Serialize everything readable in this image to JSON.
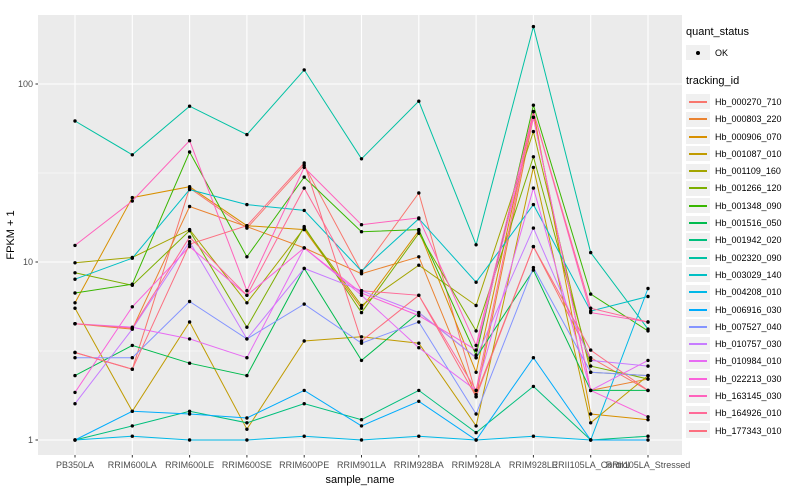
{
  "chart_data": {
    "type": "line",
    "scale_y": "log10",
    "xlabel": "sample_name",
    "ylabel": "FPKM + 1",
    "y_ticks": [
      1,
      10,
      100
    ],
    "ylim": [
      0.82,
      250
    ],
    "grid": "on",
    "legend_position": "right",
    "categories": [
      "PB350LA",
      "RRIM600LA",
      "RRIM600LE",
      "RRIM600SE",
      "RRIM600PE",
      "RRIM901LA",
      "RRIM928BA",
      "RRIM928LA",
      "RRIM928LE",
      "RRII105LA_Control",
      "RRII105LA_Stressed"
    ],
    "series": [
      {
        "name": "Hb_000270_710",
        "color": "#F8766D",
        "values": [
          3.1,
          2.5,
          26,
          15.5,
          35,
          8.8,
          24.4,
          1.8,
          12.2,
          2.9,
          1.9
        ]
      },
      {
        "name": "Hb_000803_220",
        "color": "#EA8331",
        "values": [
          4.5,
          4.2,
          20.5,
          15.8,
          12,
          8.6,
          10.7,
          1.75,
          65,
          1.9,
          2.2
        ]
      },
      {
        "name": "Hb_000906_070",
        "color": "#D89000",
        "values": [
          5.9,
          23,
          26.5,
          16,
          15.2,
          5.5,
          15,
          2.4,
          70,
          1.4,
          1.3
        ]
      },
      {
        "name": "Hb_001087_010",
        "color": "#C09B00",
        "values": [
          5.5,
          1.45,
          4.6,
          1.15,
          3.6,
          3.8,
          3.5,
          1.2,
          34,
          1.25,
          2.3
        ]
      },
      {
        "name": "Hb_001109_160",
        "color": "#A3A500",
        "values": [
          9.9,
          10.6,
          15.2,
          5.9,
          15.5,
          5.7,
          9.6,
          5.7,
          54,
          2.4,
          2.3
        ]
      },
      {
        "name": "Hb_001266_120",
        "color": "#7CAE00",
        "values": [
          8.7,
          7.4,
          15,
          4.3,
          15.8,
          5.2,
          14.5,
          4.1,
          39,
          2.6,
          2.2
        ]
      },
      {
        "name": "Hb_001348_090",
        "color": "#39B600",
        "values": [
          6.7,
          7.5,
          41.5,
          10.7,
          30,
          14.8,
          15.2,
          3.0,
          76,
          6.6,
          4.1
        ]
      },
      {
        "name": "Hb_001516_050",
        "color": "#00BB4E",
        "values": [
          2.3,
          3.4,
          2.7,
          2.3,
          9.2,
          2.8,
          5.2,
          2.9,
          9.0,
          1.9,
          1.9
        ]
      },
      {
        "name": "Hb_001942_020",
        "color": "#00BF7D",
        "values": [
          1.0,
          1.2,
          1.45,
          1.25,
          1.6,
          1.3,
          1.9,
          1.1,
          2.0,
          1.0,
          1.05
        ]
      },
      {
        "name": "Hb_002320_090",
        "color": "#00C1A3",
        "values": [
          62,
          40,
          75,
          52,
          120,
          38,
          80,
          12.5,
          210,
          11.3,
          4.2
        ]
      },
      {
        "name": "Hb_003029_140",
        "color": "#00BFC4",
        "values": [
          8.0,
          10.5,
          25.5,
          21,
          19.5,
          8.9,
          17.5,
          7.7,
          21,
          5.3,
          6.4
        ]
      },
      {
        "name": "Hb_004208_010",
        "color": "#00B8E7",
        "values": [
          1.0,
          1.05,
          1.0,
          1.0,
          1.05,
          1.0,
          1.05,
          1.0,
          1.05,
          1.0,
          7.1
        ]
      },
      {
        "name": "Hb_006916_030",
        "color": "#00ACFC",
        "values": [
          1.0,
          1.45,
          1.4,
          1.33,
          1.9,
          1.2,
          1.65,
          1.0,
          2.9,
          1.0,
          1.0
        ]
      },
      {
        "name": "Hb_007527_040",
        "color": "#8494FF",
        "values": [
          2.9,
          2.9,
          6.0,
          3.7,
          5.8,
          3.5,
          4.6,
          1.4,
          9.3,
          2.4,
          2.3
        ]
      },
      {
        "name": "Hb_010757_030",
        "color": "#C77CFF",
        "values": [
          1.6,
          4.2,
          13,
          3.7,
          9.2,
          6.9,
          5.2,
          2.9,
          15.5,
          2.8,
          2.6
        ]
      },
      {
        "name": "Hb_010984_010",
        "color": "#E76BF3",
        "values": [
          4.5,
          4.3,
          3.7,
          2.9,
          12,
          6.5,
          3.3,
          1.9,
          26,
          1.9,
          2.8
        ]
      },
      {
        "name": "Hb_022213_030",
        "color": "#FA62DB",
        "values": [
          1.85,
          5.6,
          12.2,
          6.5,
          12,
          6.7,
          5.0,
          3.2,
          65,
          1.9,
          1.35
        ]
      },
      {
        "name": "Hb_163145_030",
        "color": "#FF62BC",
        "values": [
          12.4,
          22,
          48,
          6.9,
          34,
          16.2,
          17.7,
          3.4,
          70,
          5.2,
          4.6
        ]
      },
      {
        "name": "Hb_164926_010",
        "color": "#FF6A98",
        "values": [
          4.5,
          4.25,
          13.8,
          6.5,
          26,
          6.9,
          6.5,
          1.9,
          70,
          5.5,
          4.6
        ]
      },
      {
        "name": "Hb_177343_010",
        "color": "#FC6F80",
        "values": [
          3.1,
          2.5,
          12.6,
          16,
          36,
          3.6,
          6.5,
          1.75,
          12.2,
          3.2,
          1.9
        ]
      }
    ]
  },
  "legend": {
    "quant_status_title": "quant_status",
    "quant_status_items": [
      "OK"
    ],
    "tracking_id_title": "tracking_id"
  },
  "style": {
    "panel_bg": "#EBEBEB",
    "grid_color": "#FFFFFF",
    "point_color": "#000000",
    "axis_text_color": "#4D4D4D",
    "tick_color": "#333333",
    "legend_key_bg": "#F0F0F0"
  }
}
